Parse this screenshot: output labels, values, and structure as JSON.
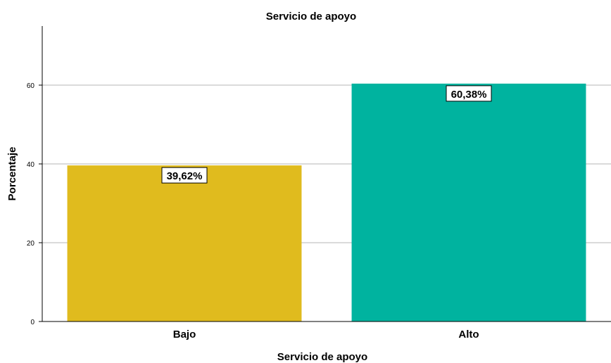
{
  "chart_data": {
    "type": "bar",
    "title": "Servicio de apoyo",
    "xlabel": "Servicio de apoyo",
    "ylabel": "Porcentaje",
    "categories": [
      "Bajo",
      "Alto"
    ],
    "values": [
      39.62,
      60.38
    ],
    "data_labels": [
      "39,62%",
      "60,38%"
    ],
    "colors": [
      "#e0bb1e",
      "#00b39f"
    ],
    "ylim": [
      0,
      75
    ],
    "yticks": [
      0,
      20,
      40,
      60
    ],
    "ytick_labels": [
      "0",
      "20",
      "40",
      "60"
    ],
    "grid": true,
    "legend": "none"
  }
}
